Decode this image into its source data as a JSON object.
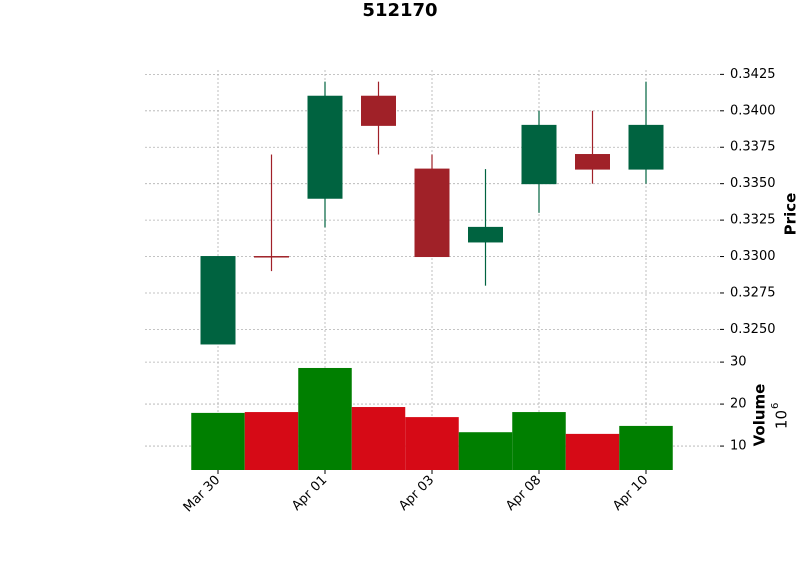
{
  "chart_data": {
    "type": "candlestick",
    "title": "512170",
    "categories": [
      "Mar 30",
      null,
      "Apr 01",
      null,
      "Apr 03",
      null,
      "Apr 08",
      null,
      "Apr 10"
    ],
    "open": [
      0.324,
      0.33,
      0.334,
      0.341,
      0.336,
      0.331,
      0.335,
      0.337,
      0.336
    ],
    "high": [
      0.33,
      0.337,
      0.342,
      0.342,
      0.337,
      0.336,
      0.34,
      0.34,
      0.342
    ],
    "low": [
      0.324,
      0.329,
      0.332,
      0.337,
      0.33,
      0.328,
      0.333,
      0.335,
      0.335
    ],
    "close": [
      0.33,
      0.33,
      0.341,
      0.339,
      0.33,
      0.332,
      0.339,
      0.336,
      0.339
    ],
    "volume": [
      17.9,
      18.1,
      28.6,
      19.3,
      16.9,
      13.3,
      18.1,
      12.9,
      14.8
    ],
    "up_color": "#006340",
    "down_color": "#a02128",
    "volume_up_color": "#007f00",
    "volume_down_color": "#d60a16",
    "ylabel": "Price",
    "y2label": "Volume",
    "y2_offset": {
      "base": "10",
      "exponent": "6"
    },
    "ylim": [
      0.3229,
      0.3428
    ],
    "yticks": [
      {
        "value": 0.325,
        "label": "0.3250"
      },
      {
        "value": 0.3275,
        "label": "0.3275"
      },
      {
        "value": 0.33,
        "label": "0.3300"
      },
      {
        "value": 0.3325,
        "label": "0.3325"
      },
      {
        "value": 0.335,
        "label": "0.3350"
      },
      {
        "value": 0.3375,
        "label": "0.3375"
      },
      {
        "value": 0.34,
        "label": "0.3400"
      },
      {
        "value": 0.3425,
        "label": "0.3425"
      }
    ],
    "y2lim": [
      4.3,
      30.5
    ],
    "y2ticks": [
      10,
      20,
      30
    ],
    "grid": true
  }
}
